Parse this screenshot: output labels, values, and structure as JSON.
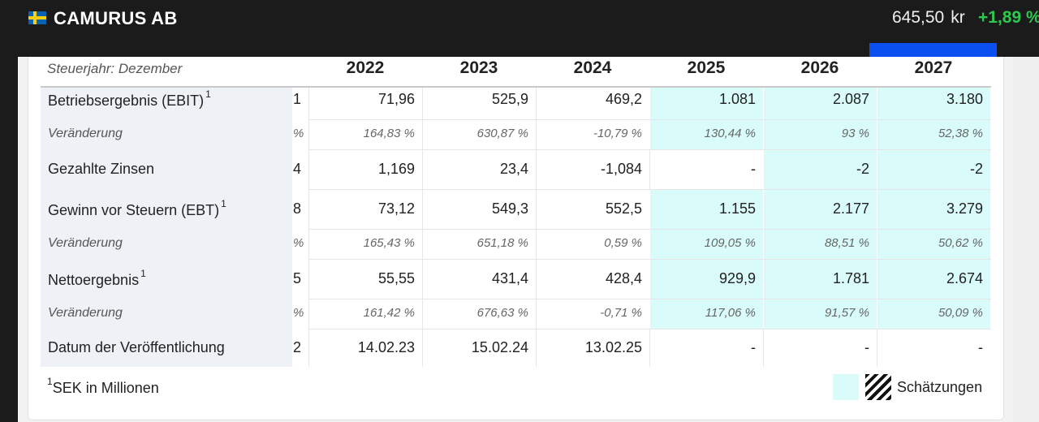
{
  "header": {
    "company": "CAMURUS AB",
    "price": "645,50",
    "currency": "kr",
    "change": "+1,89 %"
  },
  "colors": {
    "topbar": "#1b1b1b",
    "estimate": "#d9fcfa",
    "positive": "#2ec84f",
    "accent_blue": "#0a4ff0",
    "label_bg": "#eef2f6"
  },
  "icons": [
    "sweden-flag-icon",
    "hatch-pattern-icon"
  ],
  "table": {
    "fiscal_label": "Steuerjahr: Dezember",
    "years": [
      "2022",
      "2023",
      "2024",
      "2025",
      "2026",
      "2027"
    ],
    "estimate_years": [
      "2025",
      "2026",
      "2027"
    ],
    "rows": [
      {
        "label": "Betriebsergebnis (EBIT)",
        "sup": "1",
        "unit": "1",
        "values": [
          "71,96",
          "525,9",
          "469,2",
          "1.081",
          "2.087",
          "3.180"
        ]
      },
      {
        "label": "Veränderung",
        "sup": "",
        "unit": "%",
        "values": [
          "164,83 %",
          "630,87 %",
          "-10,79 %",
          "130,44 %",
          "93 %",
          "52,38 %"
        ]
      },
      {
        "label": "Gezahlte Zinsen",
        "sup": "",
        "unit": "4",
        "values": [
          "1,169",
          "23,4",
          "-1,084",
          "-",
          "-2",
          "-2"
        ]
      },
      {
        "label": "Gewinn vor Steuern (EBT)",
        "sup": "1",
        "unit": "8",
        "values": [
          "73,12",
          "549,3",
          "552,5",
          "1.155",
          "2.177",
          "3.279"
        ]
      },
      {
        "label": "Veränderung",
        "sup": "",
        "unit": "%",
        "values": [
          "165,43 %",
          "651,18 %",
          "0,59 %",
          "109,05 %",
          "88,51 %",
          "50,62 %"
        ]
      },
      {
        "label": "Nettoergebnis",
        "sup": "1",
        "unit": "5",
        "values": [
          "55,55",
          "431,4",
          "428,4",
          "929,9",
          "1.781",
          "2.674"
        ]
      },
      {
        "label": "Veränderung",
        "sup": "",
        "unit": "%",
        "values": [
          "161,42 %",
          "676,63 %",
          "-0,71 %",
          "117,06 %",
          "91,57 %",
          "50,09 %"
        ]
      },
      {
        "label": "Datum der Veröffentlichung",
        "sup": "",
        "unit": "2",
        "values": [
          "14.02.23",
          "15.02.24",
          "13.02.25",
          "-",
          "-",
          "-"
        ]
      }
    ]
  },
  "footer": {
    "footnote_sup": "1",
    "footnote": "SEK in Millionen",
    "legend_label": "Schätzungen"
  }
}
